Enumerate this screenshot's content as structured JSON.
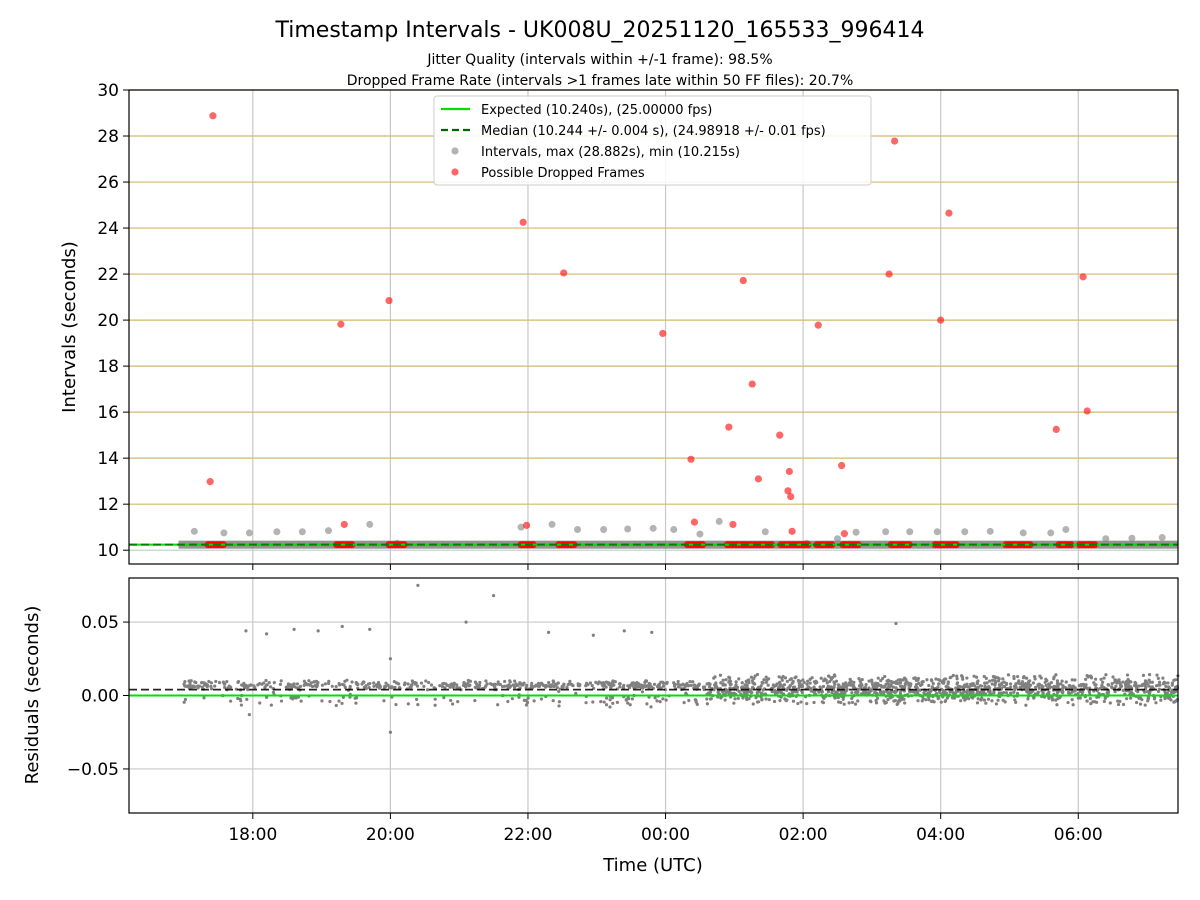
{
  "figure": {
    "title": "Timestamp Intervals - UK008U_20251120_165533_996414",
    "subtitle_1": "Jitter Quality (intervals within +/-1 frame): 98.5%",
    "subtitle_2": "Dropped Frame Rate (intervals >1 frames late within 50 FF files): 20.7%"
  },
  "colors": {
    "expected": "#00e000",
    "median": "#006400",
    "intervals": "#808080",
    "dropped": "#ff0000",
    "hgrid_top": "#d2b96e",
    "vgrid": "#c8c8c8"
  },
  "chart_data": [
    {
      "type": "scatter",
      "id": "intervals",
      "ylabel": "Intervals (seconds)",
      "xlabel": "",
      "xlim": [
        16.2,
        31.45
      ],
      "ylim": [
        9.4,
        30
      ],
      "x_tick_values": [
        18,
        20,
        22,
        24,
        26,
        28,
        30
      ],
      "y_ticks": [
        10,
        12,
        14,
        16,
        18,
        20,
        22,
        24,
        26,
        28,
        30
      ],
      "grid": true,
      "legend_position": "top-center",
      "legend": [
        {
          "kind": "line",
          "color": "#00e000",
          "dash": false,
          "label": "Expected (10.240s), (25.00000 fps)"
        },
        {
          "kind": "line",
          "color": "#006400",
          "dash": true,
          "label": "Median (10.244 +/- 0.004 s), (24.98918 +/- 0.01 fps)"
        },
        {
          "kind": "dot",
          "color": "#808080",
          "label": "Intervals, max (28.882s), min (10.215s)"
        },
        {
          "kind": "dot",
          "color": "#ff0000",
          "label": "Possible Dropped Frames"
        }
      ],
      "expected_interval": 10.24,
      "median_interval": 10.244,
      "interval_baseline_range": [
        16.92,
        31.45
      ],
      "series": [
        {
          "name": "Intervals, max (28.882s), min (10.215s)",
          "color": "#808080",
          "points": [
            [
              17.15,
              10.82
            ],
            [
              17.58,
              10.75
            ],
            [
              17.95,
              10.75
            ],
            [
              18.35,
              10.8
            ],
            [
              18.72,
              10.8
            ],
            [
              19.1,
              10.85
            ],
            [
              19.7,
              11.12
            ],
            [
              20.1,
              10.3
            ],
            [
              21.9,
              11.0
            ],
            [
              22.35,
              11.12
            ],
            [
              22.72,
              10.9
            ],
            [
              23.1,
              10.9
            ],
            [
              23.45,
              10.92
            ],
            [
              23.82,
              10.95
            ],
            [
              24.12,
              10.9
            ],
            [
              24.5,
              10.7
            ],
            [
              24.78,
              11.25
            ],
            [
              25.45,
              10.8
            ],
            [
              26.05,
              10.3
            ],
            [
              26.5,
              10.5
            ],
            [
              26.77,
              10.78
            ],
            [
              27.2,
              10.8
            ],
            [
              27.55,
              10.8
            ],
            [
              27.95,
              10.8
            ],
            [
              28.35,
              10.8
            ],
            [
              28.72,
              10.82
            ],
            [
              29.2,
              10.75
            ],
            [
              29.6,
              10.75
            ],
            [
              29.82,
              10.9
            ],
            [
              30.4,
              10.5
            ],
            [
              30.78,
              10.52
            ],
            [
              31.22,
              10.55
            ]
          ]
        },
        {
          "name": "Possible Dropped Frames",
          "color": "#ff0000",
          "points": [
            [
              17.38,
              12.98
            ],
            [
              17.42,
              28.88
            ],
            [
              19.28,
              19.82
            ],
            [
              19.33,
              11.12
            ],
            [
              19.98,
              20.85
            ],
            [
              21.93,
              24.25
            ],
            [
              21.98,
              11.08
            ],
            [
              22.52,
              22.05
            ],
            [
              23.96,
              19.42
            ],
            [
              24.37,
              13.95
            ],
            [
              24.42,
              11.22
            ],
            [
              24.92,
              15.35
            ],
            [
              24.98,
              11.12
            ],
            [
              25.13,
              21.72
            ],
            [
              25.26,
              17.22
            ],
            [
              25.35,
              13.1
            ],
            [
              25.66,
              15.0
            ],
            [
              25.8,
              13.42
            ],
            [
              25.78,
              12.58
            ],
            [
              25.82,
              12.33
            ],
            [
              25.84,
              10.82
            ],
            [
              26.22,
              19.78
            ],
            [
              26.56,
              13.68
            ],
            [
              26.6,
              10.72
            ],
            [
              27.25,
              22.0
            ],
            [
              27.33,
              27.78
            ],
            [
              28.0,
              20.0
            ],
            [
              28.12,
              24.65
            ],
            [
              29.68,
              15.25
            ],
            [
              30.07,
              21.88
            ],
            [
              30.13,
              16.05
            ]
          ]
        },
        {
          "name": "Possible Dropped Frames (baseline clusters)",
          "color": "#ff0000",
          "y": 10.24,
          "ranges": [
            [
              17.35,
              17.57
            ],
            [
              19.22,
              19.45
            ],
            [
              19.98,
              20.2
            ],
            [
              21.9,
              22.1
            ],
            [
              22.45,
              22.68
            ],
            [
              24.32,
              24.58
            ],
            [
              24.9,
              25.15
            ],
            [
              25.15,
              25.55
            ],
            [
              25.68,
              26.08
            ],
            [
              26.2,
              26.42
            ],
            [
              26.58,
              26.8
            ],
            [
              27.28,
              27.55
            ],
            [
              27.92,
              28.25
            ],
            [
              28.95,
              29.3
            ],
            [
              29.72,
              29.92
            ],
            [
              30.02,
              30.28
            ]
          ]
        }
      ]
    },
    {
      "type": "scatter",
      "id": "residuals",
      "ylabel": "Residuals (seconds)",
      "xlabel": "Time (UTC)",
      "xlim": [
        16.2,
        31.45
      ],
      "ylim": [
        -0.08,
        0.08
      ],
      "x_ticks": [
        "18:00",
        "20:00",
        "22:00",
        "00:00",
        "02:00",
        "04:00",
        "06:00"
      ],
      "x_tick_values": [
        18,
        20,
        22,
        24,
        26,
        28,
        30
      ],
      "y_ticks": [
        "0.05",
        "0.00",
        "−0.05"
      ],
      "y_tick_values": [
        0.05,
        0,
        -0.05
      ],
      "grid": true,
      "expected_residual": 0.0,
      "median_residual": 0.004,
      "series": [
        {
          "name": "Residuals",
          "color": "#808080",
          "outliers": [
            [
              17.9,
              0.044
            ],
            [
              18.2,
              0.042
            ],
            [
              18.6,
              0.045
            ],
            [
              18.95,
              0.044
            ],
            [
              19.3,
              0.047
            ],
            [
              19.7,
              0.045
            ],
            [
              20.0,
              0.025
            ],
            [
              20.4,
              0.075
            ],
            [
              21.1,
              0.05
            ],
            [
              21.5,
              0.068
            ],
            [
              22.3,
              0.043
            ],
            [
              22.95,
              0.041
            ],
            [
              23.4,
              0.044
            ],
            [
              23.8,
              0.043
            ],
            [
              27.35,
              0.049
            ],
            [
              20.0,
              -0.025
            ],
            [
              17.95,
              -0.013
            ]
          ],
          "bands": [
            {
              "x": [
                17.0,
                24.6
              ],
              "center": 0.007,
              "spread": 0.0035,
              "count": 480
            },
            {
              "x": [
                17.0,
                24.6
              ],
              "center": -0.003,
              "spread": 0.006,
              "count": 110
            },
            {
              "x": [
                24.6,
                31.45
              ],
              "center": 0.004,
              "spread": 0.011,
              "count": 1300
            }
          ]
        }
      ]
    }
  ]
}
